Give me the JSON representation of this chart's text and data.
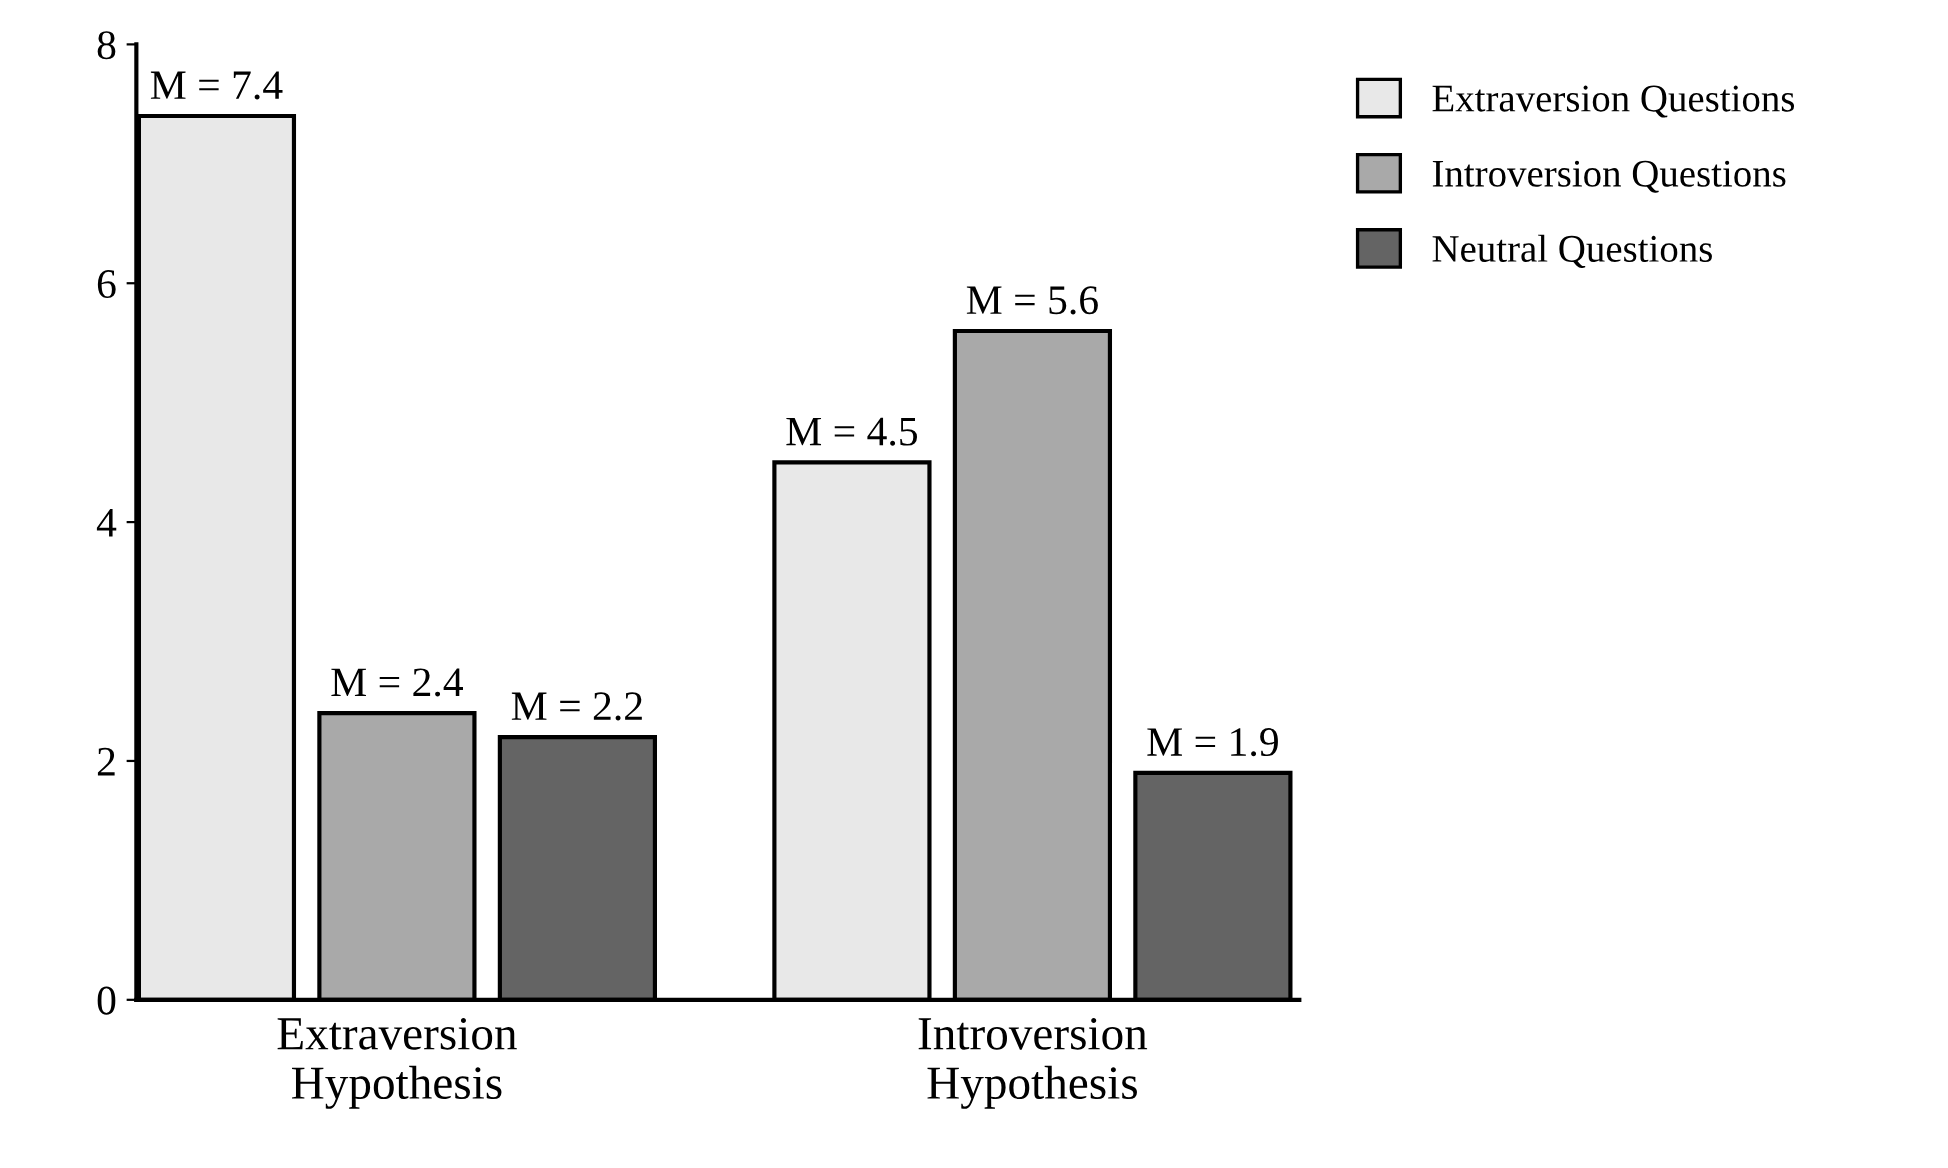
{
  "chart_data": {
    "type": "bar",
    "categories": [
      "Extraversion\nHypothesis",
      "Introversion\nHypothesis"
    ],
    "series": [
      {
        "name": "Extraversion Questions",
        "color": "#e8e8e8",
        "values": [
          7.4,
          4.5
        ],
        "value_labels": [
          "M = 7.4",
          "M = 4.5"
        ]
      },
      {
        "name": "Introversion Questions",
        "color": "#a9a9a9",
        "values": [
          2.4,
          5.6
        ],
        "value_labels": [
          "M = 2.4",
          "M = 5.6"
        ]
      },
      {
        "name": "Neutral Questions",
        "color": "#646464",
        "values": [
          2.2,
          1.9
        ],
        "value_labels": [
          "M = 2.2",
          "M = 1.9"
        ]
      }
    ],
    "ylim": [
      0,
      8
    ],
    "yticks": [
      0,
      2,
      4,
      6,
      8
    ],
    "grid": false,
    "legend": "top right"
  }
}
